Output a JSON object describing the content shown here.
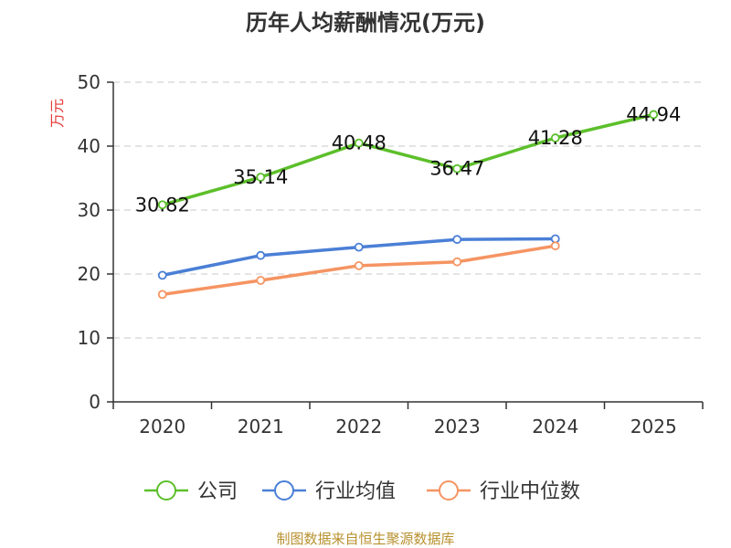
{
  "chart_data": {
    "type": "line",
    "title": "历年人均薪酬情况(万元)",
    "ylabel": "万元",
    "xlabel": "",
    "categories": [
      "2020",
      "2021",
      "2022",
      "2023",
      "2024",
      "2025"
    ],
    "ylim": [
      0,
      50
    ],
    "yticks": [
      0,
      10,
      20,
      30,
      40,
      50
    ],
    "grid": true,
    "legend_position": "bottom",
    "series": [
      {
        "name": "公司",
        "color": "#5cbf2a",
        "values": [
          30.82,
          35.14,
          40.48,
          36.47,
          41.28,
          44.94
        ],
        "labels": [
          "30.82",
          "35.14",
          "40.48",
          "36.47",
          "41.28",
          "44.94"
        ]
      },
      {
        "name": "行业均值",
        "color": "#4a7fd6",
        "values": [
          19.8,
          22.9,
          24.2,
          25.4,
          25.5,
          null
        ]
      },
      {
        "name": "行业中位数",
        "color": "#f59462",
        "values": [
          16.8,
          19.0,
          21.3,
          21.9,
          24.4,
          null
        ]
      }
    ],
    "source": "制图数据来自恒生聚源数据库"
  }
}
